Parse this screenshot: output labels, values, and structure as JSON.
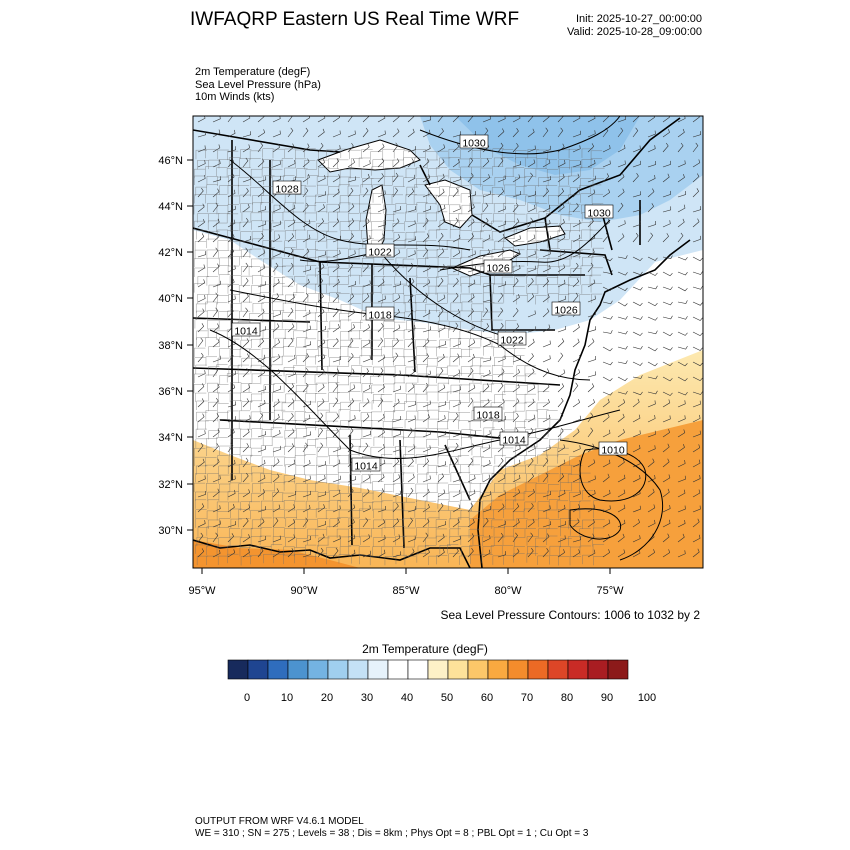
{
  "header": {
    "title": "IWFAQRP Eastern US Real Time WRF",
    "init": "Init: 2025-10-27_00:00:00",
    "valid": "Valid: 2025-10-28_09:00:00"
  },
  "fields": [
    "2m Temperature   (degF)",
    "Sea Level Pressure   (hPa)",
    "10m Winds   (kts)"
  ],
  "axes": {
    "lat_ticks": [
      "46°N",
      "44°N",
      "42°N",
      "40°N",
      "38°N",
      "36°N",
      "34°N",
      "32°N",
      "30°N"
    ],
    "lon_ticks": [
      "95°W",
      "90°W",
      "85°W",
      "80°W",
      "75°W"
    ]
  },
  "isobar_labels": [
    "1030",
    "1028",
    "1030",
    "1022",
    "1026",
    "1018",
    "1026",
    "1014",
    "1022",
    "1018",
    "1014",
    "1014",
    "1010"
  ],
  "contour_note": "Sea Level Pressure Contours: 1006 to 1032 by 2",
  "colorbar": {
    "title": "2m Temperature  (degF)",
    "colors": [
      "#172a5c",
      "#1f4591",
      "#2f6dbd",
      "#4c93cf",
      "#74b3e2",
      "#a0cfef",
      "#c4e1f6",
      "#e6f2fb",
      "#ffffff",
      "#ffffff",
      "#fdf1c7",
      "#fde29a",
      "#fcc769",
      "#f9a940",
      "#f48c2c",
      "#ec6a25",
      "#dd4627",
      "#c92b26",
      "#a91d22",
      "#8c1a1a"
    ],
    "tick_labels": [
      "0",
      "10",
      "20",
      "30",
      "40",
      "50",
      "60",
      "70",
      "80",
      "90",
      "100"
    ]
  },
  "footer": {
    "line1": "OUTPUT FROM WRF V4.6.1 MODEL",
    "line2": "WE = 310 ; SN = 275 ; Levels = 38 ; Dis = 8km ; Phys Opt = 8 ; PBL Opt = 1 ; Cu Opt = 3"
  }
}
